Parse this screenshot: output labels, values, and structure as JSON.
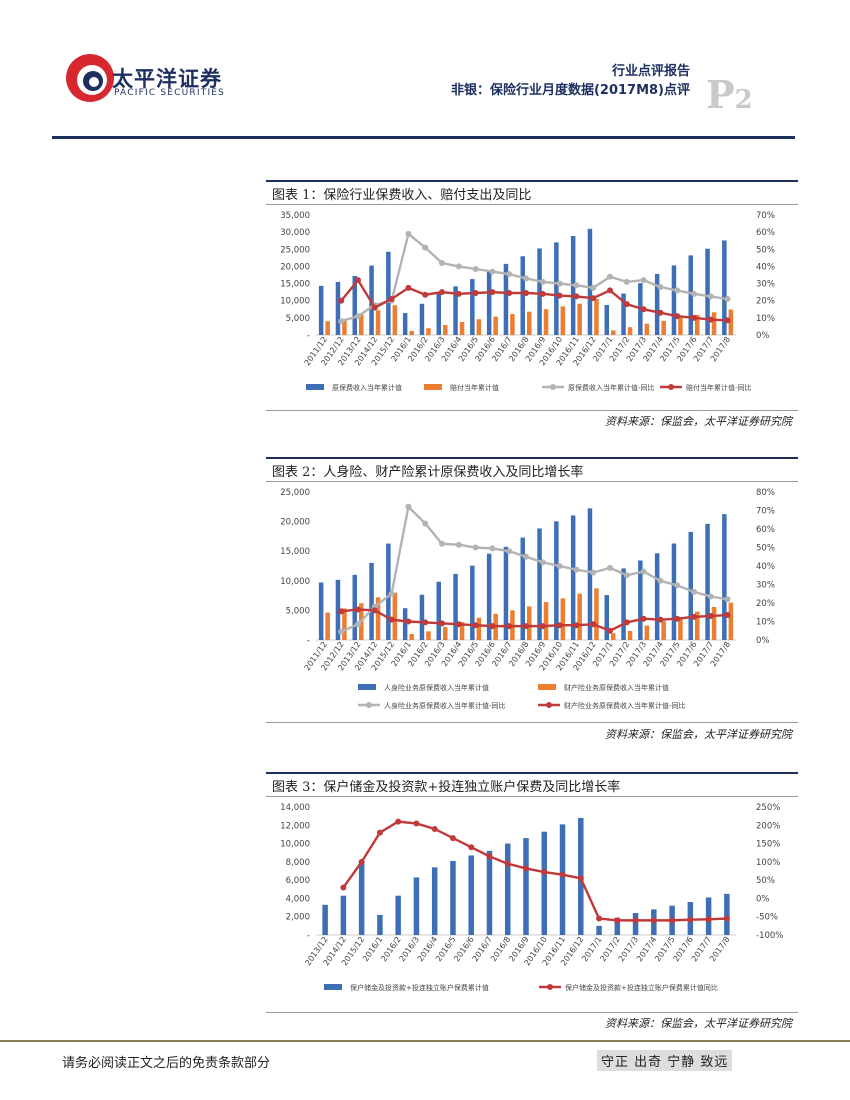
{
  "header": {
    "logo_cn": "太平洋证券",
    "logo_en": "PACIFIC SECURITIES",
    "report_type": "行业点评报告",
    "report_title": "非银：保险行业月度数据(2017M8)点评",
    "page_letter": "P",
    "page_number": "2",
    "colors": {
      "navy": "#1c2f5f",
      "red": "#d7282f"
    }
  },
  "footer": {
    "disclaimer": "请务必阅读正文之后的免责条款部分",
    "motto": "守正 出奇 宁静 致远"
  },
  "chart_data": [
    {
      "type": "bar+line",
      "title": "图表 1：保险行业保费收入、赔付支出及同比",
      "source": "资料来源：保监会，太平洋证券研究院",
      "categories": [
        "2011/12",
        "2012/12",
        "2013/12",
        "2014/12",
        "2015/12",
        "2016/1",
        "2016/2",
        "2016/3",
        "2016/4",
        "2016/5",
        "2016/6",
        "2016/7",
        "2016/8",
        "2016/9",
        "2016/10",
        "2016/11",
        "2016/12",
        "2017/1",
        "2017/2",
        "2017/3",
        "2017/4",
        "2017/5",
        "2017/6",
        "2017/7",
        "2017/8"
      ],
      "left_ylim": [
        0,
        35000
      ],
      "left_ticks": [
        "-",
        "5,000",
        "10,000",
        "15,000",
        "20,000",
        "25,000",
        "30,000",
        "35,000"
      ],
      "right_ylim": [
        0,
        70
      ],
      "right_ticks": [
        "0%",
        "10%",
        "20%",
        "30%",
        "40%",
        "50%",
        "60%",
        "70%"
      ],
      "series": [
        {
          "name": "原保费收入当年累计值",
          "kind": "bar",
          "axis": "left",
          "color": "#3e6fb5",
          "values": [
            14339,
            15488,
            17222,
            20235,
            24283,
            6382,
            9105,
            12019,
            14188,
            16306,
            18735,
            20735,
            22964,
            25242,
            26998,
            28867,
            30959,
            8737,
            12093,
            15125,
            17813,
            20297,
            23218,
            25150,
            27581
          ]
        },
        {
          "name": "赔付当年累计值",
          "kind": "bar",
          "axis": "left",
          "color": "#ec7d31",
          "values": [
            4016,
            4716,
            6213,
            7216,
            8674,
            1157,
            1999,
            2931,
            3790,
            4590,
            5354,
            6105,
            6811,
            7531,
            8347,
            9123,
            10513,
            1345,
            2284,
            3305,
            4125,
            5018,
            5849,
            6621,
            7424
          ]
        },
        {
          "name": "原保费收入当年累计值-同比",
          "kind": "line",
          "axis": "right",
          "color": "#b3b3b3",
          "values": [
            null,
            8,
            11,
            17.5,
            20,
            59,
            51,
            42,
            40,
            38.5,
            37,
            35.5,
            33,
            31,
            30,
            29,
            27.5,
            34,
            31,
            32,
            28,
            26,
            24,
            22.5,
            21
          ]
        },
        {
          "name": "赔付当年累计值-同比",
          "kind": "line",
          "axis": "right",
          "color": "#c0393b",
          "values": [
            null,
            20,
            32,
            16,
            21,
            27.5,
            23.5,
            25,
            24,
            24.5,
            25,
            24.5,
            24.5,
            24,
            23,
            22.5,
            21.5,
            26,
            18,
            15,
            13,
            11,
            10,
            9,
            8.5
          ]
        }
      ]
    },
    {
      "type": "bar+line",
      "title": "图表 2：人身险、财产险累计原保费收入及同比增长率",
      "source": "资料来源：保监会，太平洋证券研究院",
      "categories": [
        "2011/12",
        "2012/12",
        "2013/12",
        "2014/12",
        "2015/12",
        "2016/1",
        "2016/2",
        "2016/3",
        "2016/4",
        "2016/5",
        "2016/6",
        "2016/7",
        "2016/8",
        "2016/9",
        "2016/10",
        "2016/11",
        "2016/12",
        "2017/1",
        "2017/2",
        "2017/3",
        "2017/4",
        "2017/5",
        "2017/6",
        "2017/7",
        "2017/8"
      ],
      "left_ylim": [
        0,
        25000
      ],
      "left_ticks": [
        "-",
        "5,000",
        "10,000",
        "15,000",
        "20,000",
        "25,000"
      ],
      "right_ylim": [
        0,
        80
      ],
      "right_ticks": [
        "0%",
        "10%",
        "20%",
        "30%",
        "40%",
        "50%",
        "60%",
        "70%",
        "80%"
      ],
      "series": [
        {
          "name": "人身险业务原保费收入当年累计值",
          "kind": "bar",
          "axis": "left",
          "color": "#3e6fb5",
          "values": [
            9721,
            10157,
            11010,
            13031,
            16288,
            5372,
            7647,
            9838,
            11170,
            12550,
            14580,
            15733,
            17289,
            18840,
            20050,
            21040,
            22235,
            7590,
            12090,
            13430,
            14650,
            16300,
            18260,
            19620,
            21260
          ]
        },
        {
          "name": "财产险业务原保费收入当年累计值",
          "kind": "bar",
          "axis": "left",
          "color": "#ec7d31",
          "values": [
            4617,
            5330,
            6212,
            7203,
            7995,
            1010,
            1458,
            2181,
            3018,
            3756,
            4436,
            5002,
            5675,
            6402,
            7038,
            7827,
            8725,
            1147,
            1530,
            2425,
            3183,
            3857,
            4799,
            5570,
            6320
          ]
        },
        {
          "name": "人身险业务原保费收入当年累计值-同比",
          "kind": "line",
          "axis": "right",
          "color": "#b3b3b3",
          "values": [
            null,
            4.5,
            8.5,
            18,
            25,
            72,
            63,
            52,
            51.5,
            50,
            49.5,
            48,
            45,
            42,
            40,
            38,
            36.5,
            39,
            35,
            37,
            32,
            29.5,
            26,
            23.5,
            22
          ]
        },
        {
          "name": "财产险业务原保费收入当年累计值-同比",
          "kind": "line",
          "axis": "right",
          "color": "#c0393b",
          "values": [
            null,
            15.5,
            16.5,
            16,
            11,
            10,
            9.5,
            9,
            8.5,
            8,
            7.5,
            7.5,
            7.5,
            7.5,
            8,
            8,
            8.5,
            5,
            9.5,
            11.5,
            11,
            11.5,
            12.5,
            13,
            13.5
          ]
        }
      ]
    },
    {
      "type": "bar+line",
      "title": "图表 3：保户储金及投资款+投连独立账户保费及同比增长率",
      "source": "资料来源：保监会，太平洋证券研究院",
      "categories": [
        "2013/12",
        "2014/12",
        "2015/12",
        "2016/1",
        "2016/2",
        "2016/3",
        "2016/4",
        "2016/5",
        "2016/6",
        "2016/7",
        "2016/8",
        "2016/9",
        "2016/10",
        "2016/11",
        "2016/12",
        "2017/1",
        "2017/2",
        "2017/3",
        "2017/4",
        "2017/5",
        "2017/6",
        "2017/7",
        "2017/8"
      ],
      "left_ylim": [
        0,
        14000
      ],
      "left_ticks": [
        "-",
        "2,000",
        "4,000",
        "6,000",
        "8,000",
        "10,000",
        "12,000",
        "14,000"
      ],
      "right_ylim": [
        -100,
        250
      ],
      "right_ticks": [
        "-100%",
        "-50%",
        "0%",
        "50%",
        "100%",
        "150%",
        "200%",
        "250%"
      ],
      "series": [
        {
          "name": "保户储金及投资款+投连独立账户保费累计值",
          "kind": "bar",
          "axis": "left",
          "color": "#3e6fb5",
          "values": [
            3300,
            4300,
            7900,
            2200,
            4300,
            6300,
            7400,
            8100,
            8700,
            9200,
            10000,
            10600,
            11300,
            12100,
            12800,
            1000,
            1900,
            2400,
            2800,
            3200,
            3600,
            4100,
            4500
          ]
        },
        {
          "name": "保户储金及投资款+投连独立账户保费累计值同比",
          "kind": "line",
          "axis": "right",
          "color": "#c0393b",
          "values": [
            null,
            30,
            100,
            180,
            210,
            205,
            190,
            165,
            140,
            115,
            95,
            82,
            72,
            65,
            55,
            -55,
            -60,
            -60,
            -60,
            -60,
            -58,
            -57,
            -55
          ]
        }
      ]
    }
  ]
}
